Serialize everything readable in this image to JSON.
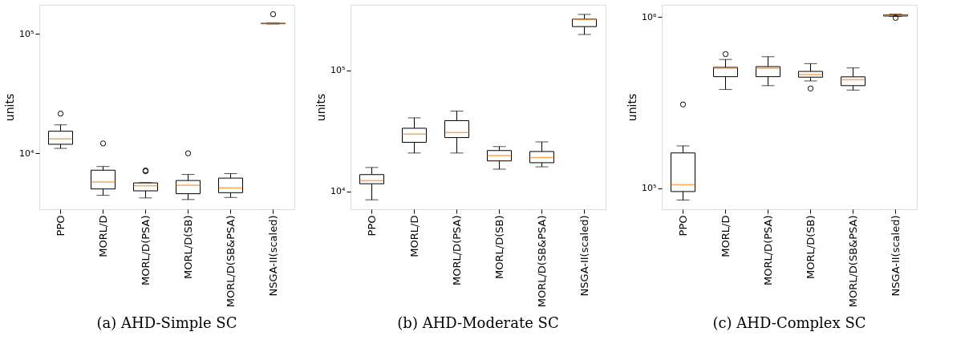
{
  "chart_data": [
    {
      "type": "box",
      "title": "(a) AHD-Simple SC",
      "ylabel": "units",
      "categories": [
        "PPO",
        "MORL/D",
        "MORL/D(PSA)",
        "MORL/D(SB)",
        "MORL/D(SB&PSA)",
        "NSGA-II(scaled)"
      ],
      "log": true,
      "grid": false,
      "ylim": [
        3400,
        175000
      ],
      "yticks": [
        {
          "value": 10000,
          "label": "10⁴"
        },
        {
          "value": 100000,
          "label": "10⁵"
        }
      ],
      "series": [
        {
          "boxes": [
            {
              "low": 11000,
              "q1": 11900,
              "median": 13200,
              "q3": 15300,
              "high": 17300,
              "outliers": [
                21500
              ]
            },
            {
              "low": 4450,
              "q1": 5030,
              "median": 5740,
              "q3": 7220,
              "high": 7750,
              "outliers": [
                12100
              ]
            },
            {
              "low": 4230,
              "q1": 4850,
              "median": 5350,
              "q3": 5650,
              "high": 5680,
              "outliers": [
                7080,
                7180
              ]
            },
            {
              "low": 4100,
              "q1": 4590,
              "median": 5400,
              "q3": 5920,
              "high": 6650,
              "outliers": [
                10000
              ]
            },
            {
              "low": 4270,
              "q1": 4680,
              "median": 5130,
              "q3": 6200,
              "high": 6760
            },
            {
              "low": 121000,
              "q1": 121500,
              "median": 122000,
              "q3": 122500,
              "high": 123000,
              "outliers": [
                146000
              ]
            }
          ]
        }
      ]
    },
    {
      "type": "box",
      "title": "(b) AHD-Moderate SC",
      "ylabel": "units",
      "categories": [
        "PPO",
        "MORL/D",
        "MORL/D(PSA)",
        "MORL/D(SB)",
        "MORL/D(SB&PSA)",
        "NSGA-II(scaled)"
      ],
      "log": true,
      "grid": false,
      "ylim": [
        7140,
        348000
      ],
      "yticks": [
        {
          "value": 10000,
          "label": "10⁴"
        },
        {
          "value": 100000,
          "label": "10⁵"
        }
      ],
      "series": [
        {
          "boxes": [
            {
              "low": 8550,
              "q1": 11600,
              "median": 12300,
              "q3": 13800,
              "high": 15800
            },
            {
              "low": 20800,
              "q1": 25500,
              "median": 29800,
              "q3": 33300,
              "high": 40600
            },
            {
              "low": 20800,
              "q1": 27900,
              "median": 30700,
              "q3": 38500,
              "high": 46100
            },
            {
              "low": 15300,
              "q1": 17900,
              "median": 19800,
              "q3": 21800,
              "high": 23500
            },
            {
              "low": 16000,
              "q1": 17300,
              "median": 19100,
              "q3": 21400,
              "high": 25700
            },
            {
              "low": 198000,
              "q1": 230000,
              "median": 264000,
              "q3": 265000,
              "high": 290000
            }
          ]
        }
      ]
    },
    {
      "type": "box",
      "title": "(c) AHD-Complex SC",
      "ylabel": "units",
      "categories": [
        "PPO",
        "MORL/D",
        "MORL/D(PSA)",
        "MORL/D(SB)",
        "MORL/D(SB&PSA)",
        "NSGA-II(scaled)"
      ],
      "log": true,
      "grid": false,
      "ylim": [
        75500,
        1180000
      ],
      "yticks": [
        {
          "value": 100000,
          "label": "10⁵"
        },
        {
          "value": 1000000,
          "label": "10⁶"
        }
      ],
      "series": [
        {
          "boxes": [
            {
              "low": 85500,
              "q1": 95800,
              "median": 105000,
              "q3": 161000,
              "high": 177000,
              "outliers": [
                309000
              ]
            },
            {
              "low": 378000,
              "q1": 449000,
              "median": 503000,
              "q3": 509000,
              "high": 566000,
              "outliers": [
                608000
              ]
            },
            {
              "low": 398000,
              "q1": 449000,
              "median": 503000,
              "q3": 514000,
              "high": 587000
            },
            {
              "low": 424000,
              "q1": 446000,
              "median": 462000,
              "q3": 482000,
              "high": 535000,
              "outliers": [
                383000
              ]
            },
            {
              "low": 375000,
              "q1": 398000,
              "median": 431000,
              "q3": 448000,
              "high": 505000
            },
            {
              "low": 1010000,
              "q1": 1015000,
              "median": 1025000,
              "q3": 1030000,
              "high": 1040000,
              "outliers": [
                989000
              ]
            }
          ]
        }
      ]
    }
  ]
}
